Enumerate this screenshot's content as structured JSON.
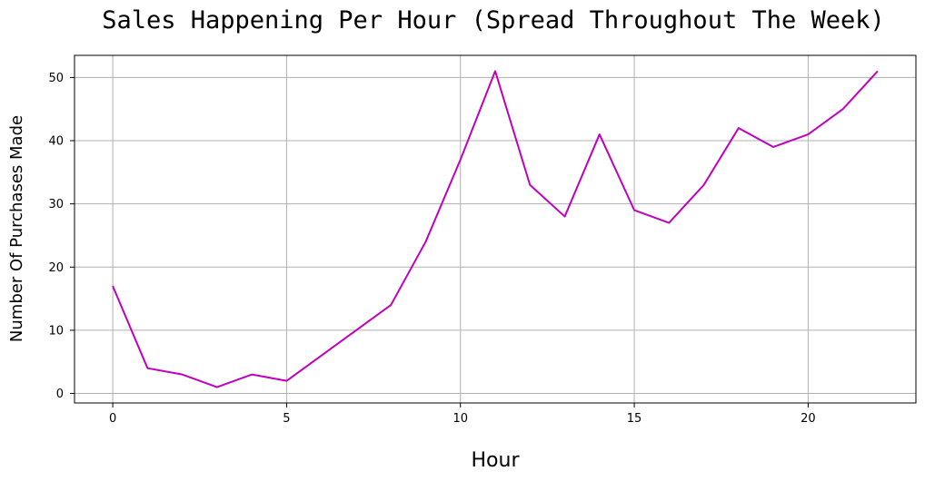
{
  "chart_data": {
    "type": "line",
    "title": "Sales Happening Per Hour (Spread Throughout The Week)",
    "xlabel": "Hour",
    "ylabel": "Number Of Purchases Made",
    "x": [
      0,
      1,
      2,
      3,
      4,
      5,
      6,
      7,
      8,
      9,
      10,
      11,
      12,
      13,
      14,
      15,
      16,
      17,
      18,
      19,
      20,
      21,
      22
    ],
    "series": [
      {
        "values": [
          17,
          4,
          3,
          1,
          3,
          2,
          6,
          10,
          14,
          24,
          37,
          51,
          33,
          28,
          41,
          29,
          27,
          33,
          42,
          39,
          41,
          45,
          51
        ],
        "color": "#bf00bf"
      }
    ],
    "xlim": [
      -1.1,
      23.1
    ],
    "ylim": [
      -1.5,
      53.5
    ],
    "xticks": [
      0,
      5,
      10,
      15,
      20
    ],
    "yticks": [
      0,
      10,
      20,
      30,
      40,
      50
    ],
    "grid": true,
    "legend": "none"
  }
}
